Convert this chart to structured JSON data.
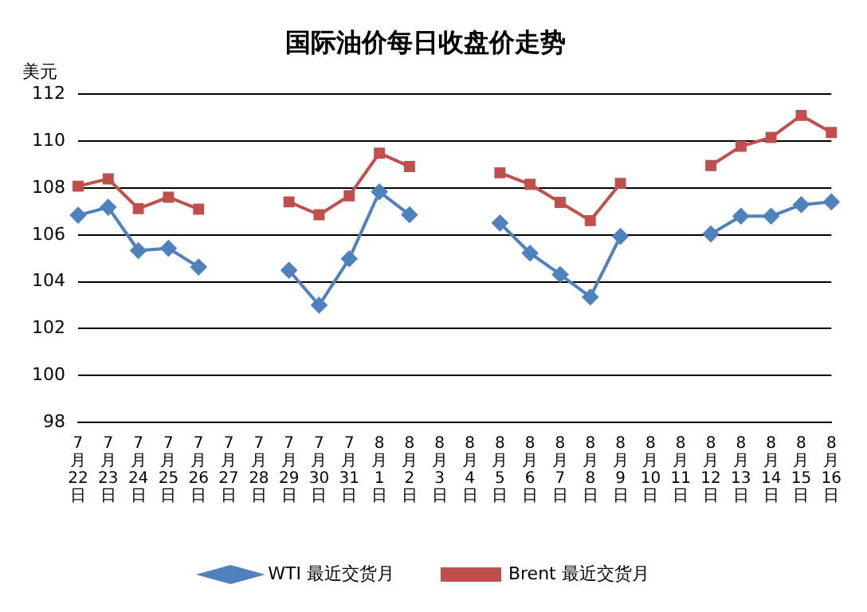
{
  "chart_data": {
    "type": "line",
    "title": "国际油价每日收盘价走势",
    "ylabel": "美元",
    "categories": [
      "7月22日",
      "7月23日",
      "7月24日",
      "7月25日",
      "7月26日",
      "7月27日",
      "7月28日",
      "7月29日",
      "7月30日",
      "7月31日",
      "8月1日",
      "8月2日",
      "8月3日",
      "8月4日",
      "8月5日",
      "8月6日",
      "8月7日",
      "8月8日",
      "8月9日",
      "8月10日",
      "8月11日",
      "8月12日",
      "8月13日",
      "8月14日",
      "8月15日",
      "8月16日"
    ],
    "series": [
      {
        "name": "WTI 最近交货月",
        "color": "#4f81bd",
        "marker": "diamond",
        "values": [
          106.84,
          107.18,
          105.33,
          105.43,
          104.63,
          null,
          null,
          104.49,
          103.0,
          104.98,
          107.84,
          106.86,
          null,
          null,
          106.51,
          105.22,
          104.31,
          103.35,
          105.94,
          null,
          null,
          106.04,
          106.8,
          106.8,
          107.29,
          107.41
        ]
      },
      {
        "name": "Brent 最近交货月",
        "color": "#c0504d",
        "marker": "square",
        "values": [
          108.08,
          108.39,
          107.12,
          107.61,
          107.1,
          null,
          null,
          107.41,
          106.86,
          107.67,
          109.49,
          108.92,
          null,
          null,
          108.65,
          108.16,
          107.39,
          106.61,
          108.2,
          null,
          null,
          108.96,
          109.78,
          110.16,
          111.1,
          110.37
        ]
      }
    ],
    "ylim": [
      98,
      112
    ],
    "yticks": [
      98,
      100,
      102,
      104,
      106,
      108,
      110,
      112
    ],
    "grid": "y",
    "legend": "bottom",
    "line_style": "solid"
  }
}
